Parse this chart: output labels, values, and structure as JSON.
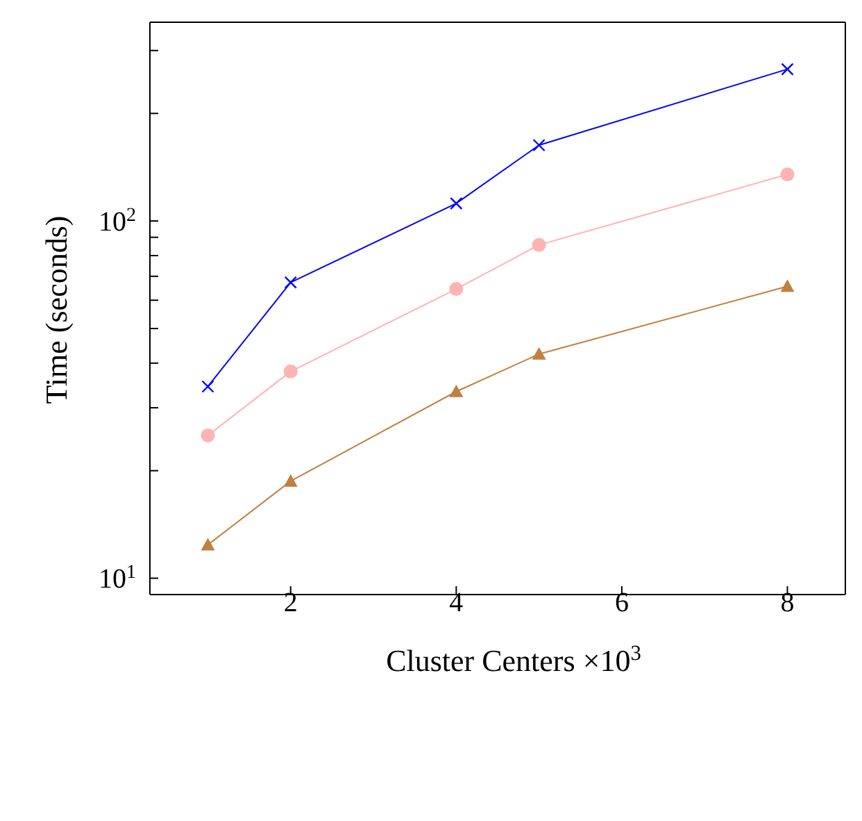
{
  "chart_data": {
    "type": "line",
    "xlabel": "Cluster Centers ×10$^{3}$",
    "ylabel": "Time (seconds)",
    "x": [
      1,
      2,
      4,
      5,
      8
    ],
    "series": [
      {
        "color": "#0000ff",
        "marker": "cross",
        "values": [
          34.4,
          67.3,
          112,
          163,
          266
        ]
      },
      {
        "color": "#ffb3b3",
        "marker": "circle",
        "values": [
          25.1,
          37.9,
          64.5,
          85.7,
          135
        ]
      },
      {
        "color": "#bf8040",
        "marker": "triangle",
        "values": [
          12.4,
          18.7,
          33.3,
          42.4,
          65.6
        ]
      }
    ],
    "log": "y",
    "xlim": [
      0.3,
      8.7
    ],
    "xticks": [
      2,
      4,
      6,
      8
    ],
    "ylim": [
      9,
      360
    ],
    "yticks": [
      {
        "value": 10,
        "label": "10$^{1}$"
      },
      {
        "value": 20,
        "label": null
      },
      {
        "value": 30,
        "label": null
      },
      {
        "value": 40,
        "label": null
      },
      {
        "value": 50,
        "label": null
      },
      {
        "value": 60,
        "label": null
      },
      {
        "value": 70,
        "label": null
      },
      {
        "value": 80,
        "label": null
      },
      {
        "value": 90,
        "label": null
      },
      {
        "value": 100,
        "label": "10$^{2}$"
      },
      {
        "value": 200,
        "label": null
      },
      {
        "value": 300,
        "label": null
      }
    ],
    "grid": false,
    "legend": false,
    "line_style": "solid"
  }
}
